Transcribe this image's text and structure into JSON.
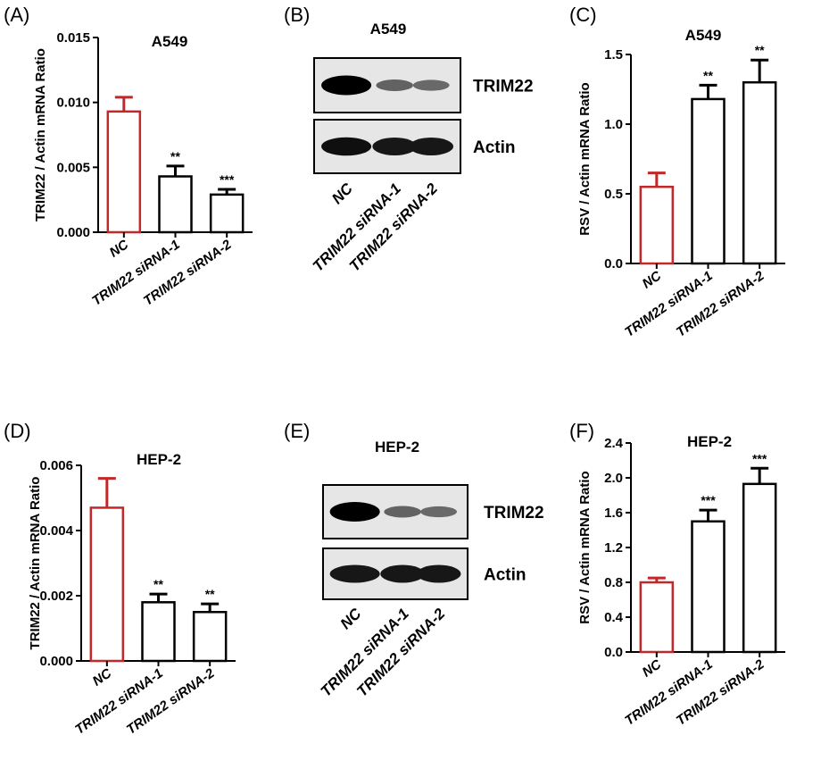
{
  "panel_labels": [
    "(A)",
    "(B)",
    "(C)",
    "(D)",
    "(E)",
    "(F)"
  ],
  "chart_data": [
    {
      "type": "bar",
      "panel": "(A)",
      "title": "A549",
      "ylabel": "TRIM22 / Actin mRNA Ratio",
      "categories": [
        "NC",
        "TRIM22 siRNA-1",
        "TRIM22 siRNA-2"
      ],
      "values": [
        0.0093,
        0.0043,
        0.0029
      ],
      "errors": [
        0.0011,
        0.0008,
        0.0004
      ],
      "significance": [
        "",
        "**",
        "***"
      ],
      "bar_colors": [
        "#c0282a",
        "#000000",
        "#000000"
      ],
      "ylim": [
        0,
        0.015
      ],
      "yticks": [
        "0.000",
        "0.005",
        "0.010",
        "0.015"
      ]
    },
    {
      "type": "bar",
      "panel": "(C)",
      "title": "A549",
      "ylabel": "RSV / Actin mRNA Ratio",
      "categories": [
        "NC",
        "TRIM22 siRNA-1",
        "TRIM22 siRNA-2"
      ],
      "values": [
        0.55,
        1.18,
        1.3
      ],
      "errors": [
        0.1,
        0.1,
        0.16
      ],
      "significance": [
        "",
        "**",
        "**"
      ],
      "bar_colors": [
        "#c0282a",
        "#000000",
        "#000000"
      ],
      "ylim": [
        0,
        1.5
      ],
      "yticks": [
        "0.0",
        "0.5",
        "1.0",
        "1.5"
      ]
    },
    {
      "type": "bar",
      "panel": "(D)",
      "title": "HEP-2",
      "ylabel": "TRIM22 / Actin mRNA Ratio",
      "categories": [
        "NC",
        "TRIM22 siRNA-1",
        "TRIM22 siRNA-2"
      ],
      "values": [
        0.0047,
        0.0018,
        0.0015
      ],
      "errors": [
        0.0009,
        0.00025,
        0.00025
      ],
      "significance": [
        "",
        "**",
        "**"
      ],
      "bar_colors": [
        "#c0282a",
        "#000000",
        "#000000"
      ],
      "ylim": [
        0,
        0.006
      ],
      "yticks": [
        "0.000",
        "0.002",
        "0.004",
        "0.006"
      ]
    },
    {
      "type": "bar",
      "panel": "(F)",
      "title": "HEP-2",
      "ylabel": "RSV / Actin mRNA Ratio",
      "categories": [
        "NC",
        "TRIM22 siRNA-1",
        "TRIM22 siRNA-2"
      ],
      "values": [
        0.8,
        1.5,
        1.93
      ],
      "errors": [
        0.05,
        0.13,
        0.18
      ],
      "significance": [
        "",
        "***",
        "***"
      ],
      "bar_colors": [
        "#c0282a",
        "#000000",
        "#000000"
      ],
      "ylim": [
        0,
        2.4
      ],
      "yticks": [
        "0.0",
        "0.4",
        "0.8",
        "1.2",
        "1.6",
        "2.0",
        "2.4"
      ]
    }
  ],
  "blots": [
    {
      "panel": "(B)",
      "title": "A549",
      "rows": [
        {
          "label": "TRIM22",
          "intensity": [
            1.0,
            0.35,
            0.3
          ]
        },
        {
          "label": "Actin",
          "intensity": [
            0.9,
            0.85,
            0.85
          ]
        }
      ],
      "lanes": [
        "NC",
        "TRIM22 siRNA-1",
        "TRIM22 siRNA-2"
      ]
    },
    {
      "panel": "(E)",
      "title": "HEP-2",
      "rows": [
        {
          "label": "TRIM22",
          "intensity": [
            1.0,
            0.35,
            0.3
          ]
        },
        {
          "label": "Actin",
          "intensity": [
            0.85,
            0.85,
            0.85
          ]
        }
      ],
      "lanes": [
        "NC",
        "TRIM22 siRNA-1",
        "TRIM22 siRNA-2"
      ]
    }
  ]
}
